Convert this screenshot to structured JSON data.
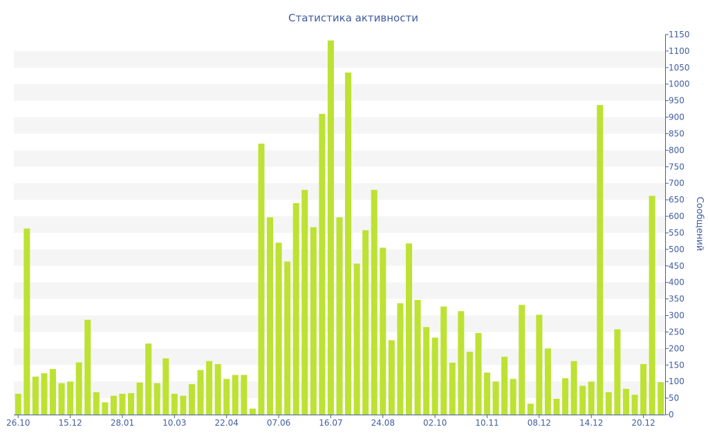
{
  "chart_data": {
    "type": "bar",
    "title": "Статистика активности",
    "ylabel": "Сообщений",
    "ylim": [
      0,
      1150
    ],
    "y_ticks": [
      0,
      50,
      100,
      150,
      200,
      250,
      300,
      350,
      400,
      450,
      500,
      550,
      600,
      650,
      700,
      750,
      800,
      850,
      900,
      950,
      1000,
      1050,
      1100,
      1150
    ],
    "y_axis_side": "right",
    "grid": "horizontal alternating bands",
    "x_tick_labels": [
      {
        "label": "26.10",
        "index": 0
      },
      {
        "label": "15.12",
        "index": 6
      },
      {
        "label": "28.01",
        "index": 12
      },
      {
        "label": "10.03",
        "index": 18
      },
      {
        "label": "22.04",
        "index": 24
      },
      {
        "label": "07.06",
        "index": 30
      },
      {
        "label": "16.07",
        "index": 36
      },
      {
        "label": "24.08",
        "index": 42
      },
      {
        "label": "02.10",
        "index": 48
      },
      {
        "label": "10.11",
        "index": 54
      },
      {
        "label": "08.12",
        "index": 60
      },
      {
        "label": "14.12",
        "index": 66
      },
      {
        "label": "20.12",
        "index": 72
      }
    ],
    "values": [
      63,
      563,
      115,
      125,
      138,
      95,
      100,
      158,
      287,
      68,
      37,
      57,
      63,
      65,
      97,
      215,
      95,
      170,
      63,
      57,
      92,
      135,
      162,
      153,
      108,
      120,
      120,
      18,
      820,
      597,
      520,
      463,
      640,
      680,
      567,
      910,
      1132,
      597,
      1035,
      457,
      558,
      680,
      505,
      225,
      337,
      518,
      347,
      265,
      233,
      327,
      157,
      313,
      190,
      247,
      127,
      100,
      175,
      108,
      332,
      33,
      302,
      200,
      48,
      110,
      162,
      87,
      100,
      937,
      68,
      258,
      78,
      60,
      153,
      662,
      98
    ],
    "colors": {
      "bar": "#bde233",
      "axis_text": "#3f5c9f",
      "title": "#3f5c9f",
      "band": "#f5f5f5",
      "axis_line": "#3f5c9f"
    }
  }
}
